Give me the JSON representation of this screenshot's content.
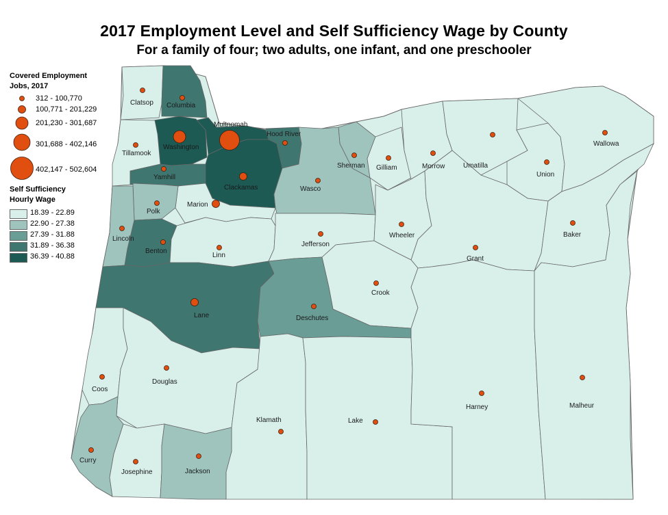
{
  "title": "2017 Employment Level and Self Sufficiency Wage by County",
  "subtitle": "For a family of four; two adults, one infant, and one preschooler",
  "legend": {
    "employment_title_1": "Covered Employment",
    "employment_title_2": "Jobs, 2017",
    "employment_classes": [
      "312 - 100,770",
      "100,771 - 201,229",
      "201,230 - 301,687",
      "301,688 - 402,146",
      "402,147 - 502,604"
    ],
    "wage_title_1": "Self Sufficiency",
    "wage_title_2": "Hourly Wage",
    "wage_classes": [
      "18.39 - 22.89",
      "22.90 - 27.38",
      "27.39 - 31.88",
      "31.89 - 36.38",
      "36.39 - 40.88"
    ],
    "wage_colors": [
      "#d9f0ea",
      "#9fc4be",
      "#6a9d95",
      "#3f7670",
      "#1d5a54"
    ],
    "dot_color": "#e04e10"
  },
  "counties": [
    {
      "name": "Clatsop",
      "wage_class": 0,
      "jobs_class": 0
    },
    {
      "name": "Columbia",
      "wage_class": 3,
      "jobs_class": 0
    },
    {
      "name": "Multnomah",
      "wage_class": 4,
      "jobs_class": 4
    },
    {
      "name": "Hood River",
      "wage_class": 3,
      "jobs_class": 0
    },
    {
      "name": "Washington",
      "wage_class": 4,
      "jobs_class": 2
    },
    {
      "name": "Tillamook",
      "wage_class": 0,
      "jobs_class": 0
    },
    {
      "name": "Yamhill",
      "wage_class": 3,
      "jobs_class": 0
    },
    {
      "name": "Clackamas",
      "wage_class": 4,
      "jobs_class": 1
    },
    {
      "name": "Marion",
      "wage_class": 0,
      "jobs_class": 1
    },
    {
      "name": "Polk",
      "wage_class": 1,
      "jobs_class": 0
    },
    {
      "name": "Lincoln",
      "wage_class": 1,
      "jobs_class": 0
    },
    {
      "name": "Benton",
      "wage_class": 3,
      "jobs_class": 0
    },
    {
      "name": "Linn",
      "wage_class": 0,
      "jobs_class": 0
    },
    {
      "name": "Lane",
      "wage_class": 3,
      "jobs_class": 1
    },
    {
      "name": "Sherman",
      "wage_class": 1,
      "jobs_class": 0
    },
    {
      "name": "Gilliam",
      "wage_class": 0,
      "jobs_class": 0
    },
    {
      "name": "Wasco",
      "wage_class": 1,
      "jobs_class": 0
    },
    {
      "name": "Morrow",
      "wage_class": 0,
      "jobs_class": 0
    },
    {
      "name": "Umatilla",
      "wage_class": 0,
      "jobs_class": 0
    },
    {
      "name": "Union",
      "wage_class": 0,
      "jobs_class": 0
    },
    {
      "name": "Wallowa",
      "wage_class": 0,
      "jobs_class": 0
    },
    {
      "name": "Jefferson",
      "wage_class": 0,
      "jobs_class": 0
    },
    {
      "name": "Wheeler",
      "wage_class": 0,
      "jobs_class": 0
    },
    {
      "name": "Grant",
      "wage_class": 0,
      "jobs_class": 0
    },
    {
      "name": "Baker",
      "wage_class": 0,
      "jobs_class": 0
    },
    {
      "name": "Crook",
      "wage_class": 0,
      "jobs_class": 0
    },
    {
      "name": "Deschutes",
      "wage_class": 2,
      "jobs_class": 0
    },
    {
      "name": "Coos",
      "wage_class": 0,
      "jobs_class": 0
    },
    {
      "name": "Douglas",
      "wage_class": 0,
      "jobs_class": 0
    },
    {
      "name": "Klamath",
      "wage_class": 0,
      "jobs_class": 0
    },
    {
      "name": "Lake",
      "wage_class": 0,
      "jobs_class": 0
    },
    {
      "name": "Harney",
      "wage_class": 0,
      "jobs_class": 0
    },
    {
      "name": "Malheur",
      "wage_class": 0,
      "jobs_class": 0
    },
    {
      "name": "Curry",
      "wage_class": 1,
      "jobs_class": 0
    },
    {
      "name": "Josephine",
      "wage_class": 0,
      "jobs_class": 0
    },
    {
      "name": "Jackson",
      "wage_class": 1,
      "jobs_class": 0
    }
  ]
}
